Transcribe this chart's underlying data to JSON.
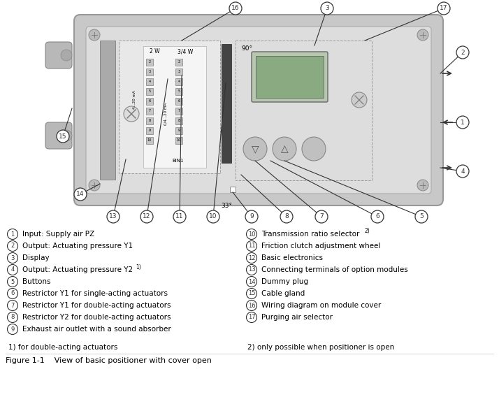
{
  "title": "Figure 1-1    View of basic positioner with cover open",
  "bg_color": "#ffffff",
  "legend_items_left": [
    [
      "1",
      "Input: Supply air PZ"
    ],
    [
      "2",
      "Output: Actuating pressure Y1"
    ],
    [
      "3",
      "Display"
    ],
    [
      "4",
      "Output: Actuating pressure Y2 ¹)"
    ],
    [
      "5",
      "Buttons"
    ],
    [
      "6",
      "Restrictor Y1 for single-acting actuators"
    ],
    [
      "7",
      "Restrictor Y1 for double-acting actuators"
    ],
    [
      "8",
      "Restrictor Y2 for double-acting actuators"
    ],
    [
      "9",
      "Exhaust air outlet with a sound absorber"
    ]
  ],
  "legend_items_right": [
    [
      "10",
      "Transmission ratio selector ²)"
    ],
    [
      "11",
      "Friction clutch adjustment wheel"
    ],
    [
      "12",
      "Basic electronics"
    ],
    [
      "13",
      "Connecting terminals of option modules"
    ],
    [
      "14",
      "Dummy plug"
    ],
    [
      "15",
      "Cable gland"
    ],
    [
      "16",
      "Wiring diagram on module cover"
    ],
    [
      "17",
      "Purging air selector"
    ]
  ],
  "footnote_left": "1) for double-acting actuators",
  "footnote_right": "2) only possible when positioner is open"
}
